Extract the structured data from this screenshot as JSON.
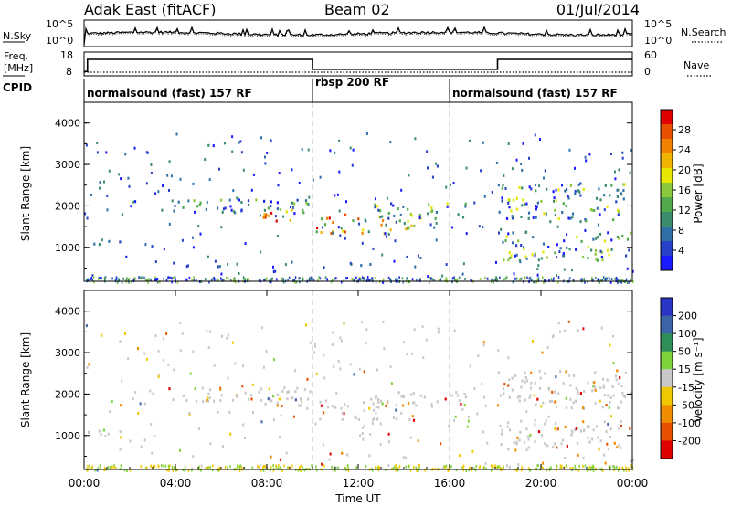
{
  "header": {
    "station": "Adak East (fitACF)",
    "beam": "Beam 02",
    "date": "01/Jul/2014"
  },
  "noise_panel": {
    "left_label": "N.Sky",
    "right_label": "N.Search",
    "left_ticks": [
      "10^5",
      "10^0"
    ],
    "right_ticks": [
      "10^5",
      "10^0"
    ]
  },
  "freq_panel": {
    "left_label_1": "Freq.",
    "left_label_2": "[MHz]",
    "right_label": "Nave",
    "left_ticks": [
      "18",
      "8"
    ],
    "right_ticks": [
      "60",
      "0"
    ],
    "freq_steps": [
      {
        "t": 0.0,
        "mhz": 10.0
      },
      {
        "t": 0.15,
        "mhz": 15.5
      },
      {
        "t": 10.0,
        "mhz": 11.0
      },
      {
        "t": 18.1,
        "mhz": 15.5
      },
      {
        "t": 24.0,
        "mhz": 15.5
      }
    ],
    "nave_level": 10
  },
  "cpid": {
    "label": "CPID",
    "segments": [
      {
        "start": 0,
        "end": 10,
        "name": "normalsound (fast) 157 RF"
      },
      {
        "start": 10,
        "end": 16,
        "name": "rbsp 200 RF"
      },
      {
        "start": 16,
        "end": 24,
        "name": "normalsound (fast) 157 RF"
      }
    ]
  },
  "chart_data": [
    {
      "type": "heatmap",
      "parameter": "power",
      "ylabel": "Slant Range [km]",
      "xlabel": "Time UT",
      "xlim": [
        0,
        24
      ],
      "ylim": [
        180,
        4500
      ],
      "yticks": [
        "1000",
        "2000",
        "3000",
        "4000"
      ],
      "grid": "dashed verticals at 10:00 and 16:00",
      "colorbar": {
        "label": "Power [dB]",
        "ticks": [
          "4",
          "8",
          "12",
          "16",
          "20",
          "24",
          "28"
        ],
        "colors": [
          "#1a1aff",
          "#2640c8",
          "#2f6fa8",
          "#3c8c6e",
          "#50aa4c",
          "#8cc83c",
          "#e6e600",
          "#f0b400",
          "#f08200",
          "#e85000",
          "#e00000"
        ]
      },
      "echo_bands": [
        {
          "t0": 0.1,
          "t1": 1.6,
          "r0": 1050,
          "r1": 1230,
          "level": "low"
        },
        {
          "t0": 3.2,
          "t1": 9.9,
          "r0": 1850,
          "r1": 2200,
          "level": "mid"
        },
        {
          "t0": 7.8,
          "t1": 9.9,
          "r0": 1650,
          "r1": 1950,
          "level": "high"
        },
        {
          "t0": 10.05,
          "t1": 14.5,
          "r0": 1350,
          "r1": 1850,
          "level": "high"
        },
        {
          "t0": 12.5,
          "t1": 16.8,
          "r0": 1700,
          "r1": 2100,
          "level": "mid"
        },
        {
          "t0": 18.1,
          "t1": 23.8,
          "r0": 1650,
          "r1": 2600,
          "level": "mid"
        },
        {
          "t0": 18.2,
          "t1": 23.9,
          "r0": 700,
          "r1": 1400,
          "level": "mid"
        },
        {
          "t0": 5.3,
          "t1": 6.3,
          "r0": 3400,
          "r1": 3580,
          "level": "low"
        },
        {
          "t0": 11.2,
          "t1": 12.5,
          "r0": 500,
          "r1": 650,
          "level": "low"
        }
      ]
    },
    {
      "type": "heatmap",
      "parameter": "velocity",
      "ylabel": "Slant Range [km]",
      "xlabel": "Time UT",
      "xlim": [
        0,
        24
      ],
      "ylim": [
        180,
        4500
      ],
      "yticks": [
        "1000",
        "2000",
        "3000",
        "4000"
      ],
      "xticks": [
        "00:00",
        "04:00",
        "08:00",
        "12:00",
        "16:00",
        "20:00",
        "00:00"
      ],
      "grid": "dashed verticals at 10:00 and 16:00",
      "colorbar": {
        "label": "Velocity [m s⁻¹]",
        "ticks": [
          "200",
          "100",
          "50",
          "15",
          "-15",
          "-50",
          "-100",
          "-200"
        ],
        "colors": [
          "#2a35c8",
          "#3c64a8",
          "#2f8f5a",
          "#7fd23c",
          "#c8c8c8",
          "#f0c800",
          "#f08c00",
          "#e65000",
          "#e00000"
        ]
      },
      "echo_bands": [
        {
          "t0": 0.1,
          "t1": 1.6,
          "r0": 1050,
          "r1": 1230,
          "level": "low"
        },
        {
          "t0": 3.2,
          "t1": 9.9,
          "r0": 1850,
          "r1": 2200,
          "level": "mid"
        },
        {
          "t0": 7.8,
          "t1": 9.9,
          "r0": 1650,
          "r1": 1950,
          "level": "high"
        },
        {
          "t0": 10.05,
          "t1": 14.5,
          "r0": 1350,
          "r1": 1850,
          "level": "high"
        },
        {
          "t0": 12.5,
          "t1": 16.8,
          "r0": 1700,
          "r1": 2100,
          "level": "mid"
        },
        {
          "t0": 18.1,
          "t1": 23.8,
          "r0": 1650,
          "r1": 2600,
          "level": "mid"
        },
        {
          "t0": 18.2,
          "t1": 23.9,
          "r0": 700,
          "r1": 1400,
          "level": "mid"
        },
        {
          "t0": 5.3,
          "t1": 6.3,
          "r0": 3400,
          "r1": 3580,
          "level": "low"
        },
        {
          "t0": 11.2,
          "t1": 12.5,
          "r0": 500,
          "r1": 650,
          "level": "low"
        }
      ]
    }
  ]
}
